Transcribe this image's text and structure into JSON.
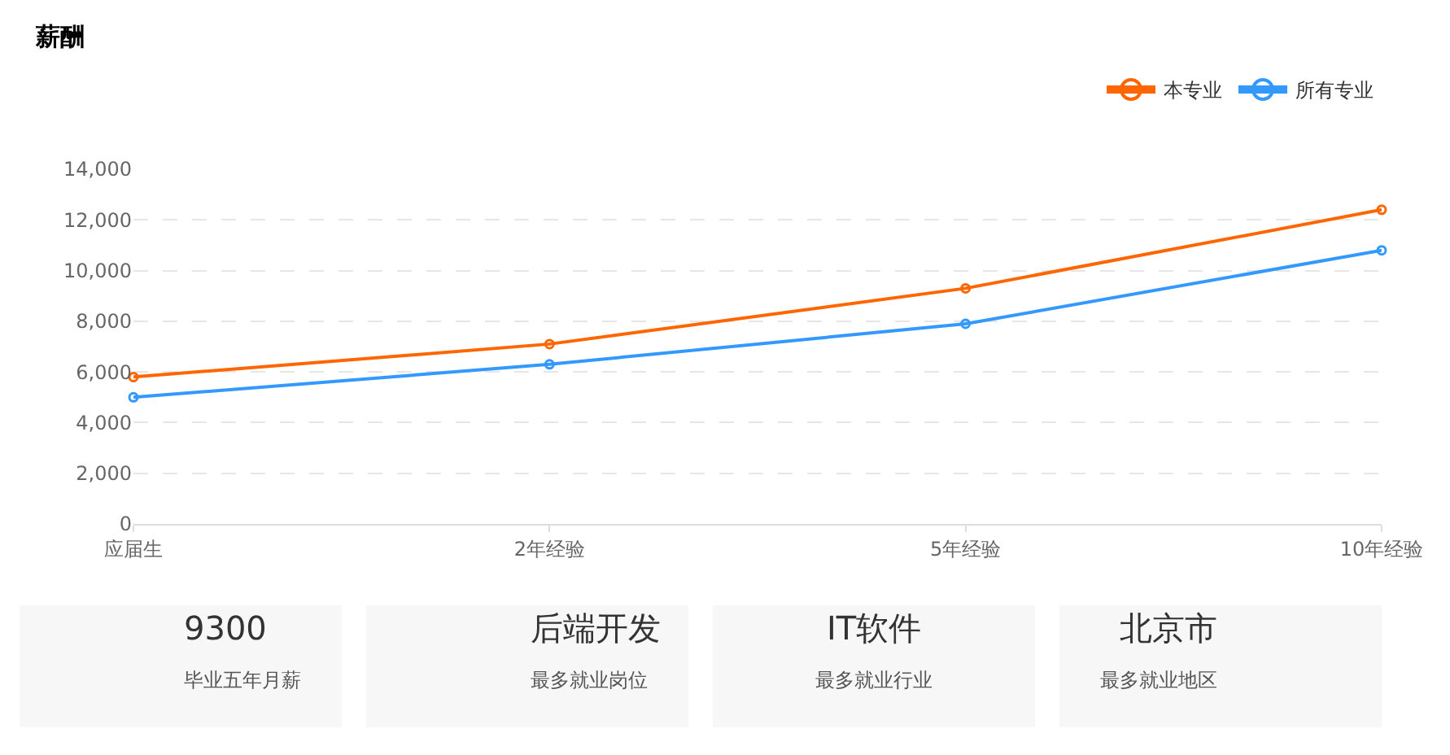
{
  "chart_data": [
    {
      "type": "line",
      "title": "薪酬",
      "categories": [
        "应届生",
        "2年经验",
        "5年经验",
        "10年经验"
      ],
      "series": [
        {
          "name": "本专业",
          "color": "#ff6600",
          "values": [
            5800,
            7100,
            9300,
            12400
          ]
        },
        {
          "name": "所有专业",
          "color": "#3399ff",
          "values": [
            5000,
            6300,
            7900,
            10800
          ]
        }
      ],
      "ylim": [
        0,
        14000
      ],
      "yticks": [
        {
          "value": 0,
          "label": "0"
        },
        {
          "value": 2000,
          "label": "2,000"
        },
        {
          "value": 4000,
          "label": "4,000"
        },
        {
          "value": 6000,
          "label": "6,000"
        },
        {
          "value": 8000,
          "label": "8,000"
        },
        {
          "value": 10000,
          "label": "10,000"
        },
        {
          "value": 12000,
          "label": "12,000"
        },
        {
          "value": 14000,
          "label": "14,000"
        }
      ],
      "grid": "y",
      "legend": "top right",
      "marker": "circle",
      "line_style": "solid"
    },
    {
      "type": "other",
      "annotations": [
        "9300",
        "毕业五年月薪",
        "后端开发",
        "最多就业岗位",
        "IT软件",
        "最多就业行业",
        "北京市",
        "最多就业地区"
      ]
    }
  ]
}
